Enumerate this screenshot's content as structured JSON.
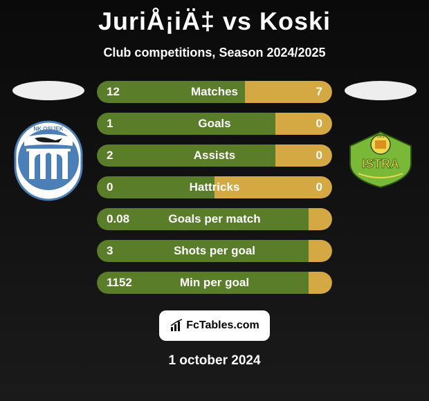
{
  "header": {
    "title": "JuriÅ¡iÄ‡ vs Koski",
    "subtitle": "Club competitions, Season 2024/2025"
  },
  "colors": {
    "left_bar": "#5a7d2a",
    "right_bar": "#d4a843",
    "left_bar_dim": "#3d5420",
    "right_bar_dim": "#8f7230",
    "background": "#0a0a0a",
    "osijek_blue": "#4a7fb8",
    "osijek_white": "#ffffff",
    "istra_green": "#7ab838",
    "istra_yellow": "#f0d850"
  },
  "stats": [
    {
      "label": "Matches",
      "left_val": "12",
      "right_val": "7",
      "left_pct": 63,
      "right_pct": 37
    },
    {
      "label": "Goals",
      "left_val": "1",
      "right_val": "0",
      "left_pct": 76,
      "right_pct": 24
    },
    {
      "label": "Assists",
      "left_val": "2",
      "right_val": "0",
      "left_pct": 76,
      "right_pct": 24
    },
    {
      "label": "Hattricks",
      "left_val": "0",
      "right_val": "0",
      "left_pct": 50,
      "right_pct": 50
    },
    {
      "label": "Goals per match",
      "left_val": "0.08",
      "right_val": "",
      "left_pct": 90,
      "right_pct": 10
    },
    {
      "label": "Shots per goal",
      "left_val": "3",
      "right_val": "",
      "left_pct": 90,
      "right_pct": 10
    },
    {
      "label": "Min per goal",
      "left_val": "1152",
      "right_val": "",
      "left_pct": 90,
      "right_pct": 10
    }
  ],
  "footer": {
    "logo_text": "FcTables.com",
    "date": "1 october 2024"
  }
}
